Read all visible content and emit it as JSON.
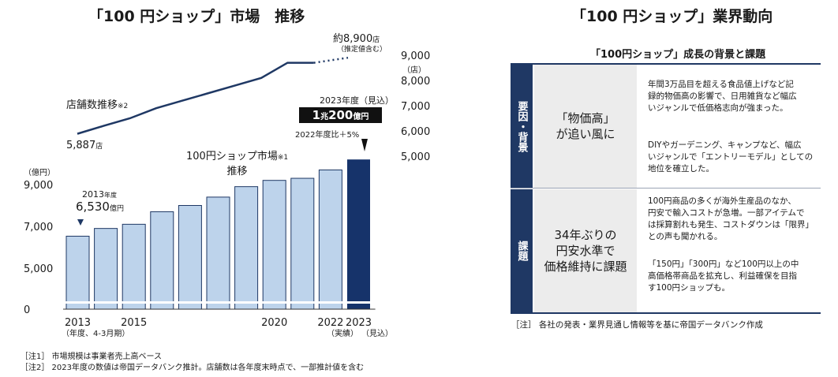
{
  "left": {
    "title": "「100 円ショップ」市場　推移",
    "store_label": "店舗数推移",
    "store_label_note": "※2",
    "store_first_label": "5,887",
    "store_first_unit": "店",
    "store_last_label": "約8,900",
    "store_last_unit": "店",
    "store_last_note": "（推定値含む）",
    "market_label_line1": "100円ショップ市場",
    "market_label_note": "※1",
    "market_label_line2": "推移",
    "first_callout_year": "2013",
    "first_callout_year_suffix": "年度",
    "first_callout_value": "6,530",
    "first_callout_unit": "億円",
    "last_callout_year": "2023年度（見込）",
    "last_callout_value_a": "1",
    "last_callout_value_b": "兆",
    "last_callout_value_c": "200",
    "last_callout_value_d": "億円",
    "last_callout_change": "2022年度比＋5%",
    "yaxis_unit": "（億円）",
    "right_axis_unit": "（店）",
    "x_note_2013": "（年度、4-3月期）",
    "x_note_2022": "（実績）",
    "x_note_2023": "（見込）",
    "notes": [
      "［注1］ 市場規模は事業者売上高ベース",
      "［注2］ 2023年度の数値は帝国データバンク推計。店舗数は各年度末時点で、一部推計値を含む"
    ]
  },
  "right": {
    "title": "「100 円ショップ」業界動向",
    "subtitle": "「100円ショップ」成長の背景と課題",
    "rows": [
      {
        "side": "要因・背景",
        "middle": "「物価高」\nが追い風に",
        "texts": [
          "年間3万品目を超える食品値上げなど記\n録的物価高の影響で、日用雑貨など幅広\nいジャンルで低価格志向が強まった。",
          "DIYやガーデニング、キャンプなど、幅広\nいジャンルで「エントリーモデル」としての\n地位を確立した。"
        ]
      },
      {
        "side": "課題",
        "middle": "34年ぶりの\n円安水準で\n価格維持に課題",
        "texts": [
          "100円商品の多くが海外生産品のなか、\n円安で輸入コストが急増。一部アイテムで\nは採算割れも発生、コストダウンは「限界」\nとの声も聞かれる。",
          "「150円」「300円」など100円以上の中\n高価格帯商品を拡充し、利益確保を目指\nす100円ショップも。"
        ]
      }
    ],
    "note": "［注］ 各社の発表・業界見通し情報等を基に帝国データバンク作成"
  },
  "chart_data": [
    {
      "type": "bar",
      "categories": [
        "2013",
        "2014",
        "2015",
        "2016",
        "2017",
        "2018",
        "2019",
        "2020",
        "2021",
        "2022",
        "2023"
      ],
      "values": [
        6530,
        6900,
        7100,
        7700,
        8000,
        8400,
        8900,
        9200,
        9300,
        9700,
        10200
      ],
      "xtick_labels": [
        "2013",
        "",
        "2015",
        "",
        "",
        "",
        "",
        "2020",
        "",
        "2022",
        "2023"
      ],
      "ylabel": "（億円）",
      "yticks": [
        0,
        5000,
        7000,
        9000
      ],
      "ytick_labels": [
        "0",
        "5,000",
        "7,000",
        "9,000"
      ],
      "highlight_last": true,
      "colors": {
        "bar": "#bdd3eb",
        "bar_border": "#1f3864",
        "bar_last": "#16336a"
      }
    },
    {
      "type": "line",
      "categories": [
        "2013",
        "2014",
        "2015",
        "2016",
        "2017",
        "2018",
        "2019",
        "2020",
        "2021",
        "2022",
        "2023"
      ],
      "values": [
        5887,
        6200,
        6500,
        6900,
        7200,
        7500,
        7800,
        8100,
        8700,
        8700,
        8900
      ],
      "estimated_from_index": 9,
      "ylabel": "（店）",
      "yticks": [
        5000,
        6000,
        7000,
        8000,
        9000
      ],
      "ytick_labels": [
        "5,000",
        "6,000",
        "7,000",
        "8,000",
        "9,000"
      ],
      "colors": {
        "line": "#1f3864"
      }
    }
  ]
}
